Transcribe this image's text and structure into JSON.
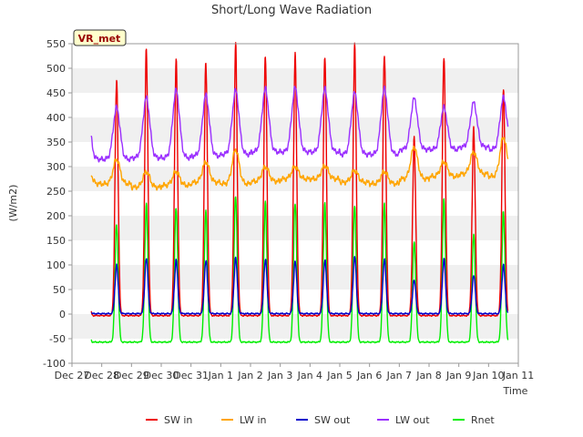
{
  "chart_data": {
    "type": "line",
    "title": "Short/Long Wave Radiation",
    "xlabel": "Time",
    "ylabel": "(W/m2)",
    "station_label": "VR_met",
    "x_range": [
      "Dec 27",
      "Jan 11"
    ],
    "x_ticks": [
      "Dec 27",
      "Dec 28",
      "Dec 29",
      "Dec 30",
      "Dec 31",
      "Jan 1",
      "Jan 2",
      "Jan 3",
      "Jan 4",
      "Jan 5",
      "Jan 6",
      "Jan 7",
      "Jan 8",
      "Jan 9",
      "Jan 10",
      "Jan 11"
    ],
    "ylim": [
      -100,
      550
    ],
    "y_ticks": [
      -100,
      -50,
      0,
      50,
      100,
      150,
      200,
      250,
      300,
      350,
      400,
      450,
      500,
      550
    ],
    "grid": "horizontal bands",
    "legend_position": "bottom",
    "days": [
      "Dec 28",
      "Dec 29",
      "Dec 30",
      "Dec 31",
      "Jan 1",
      "Jan 2",
      "Jan 3",
      "Jan 4",
      "Jan 5",
      "Jan 6",
      "Jan 7",
      "Jan 8",
      "Jan 9",
      "Jan 10"
    ],
    "series": [
      {
        "name": "SW in",
        "color": "#ee0000",
        "night": -3,
        "daily_peak": [
          470,
          530,
          510,
          505,
          540,
          520,
          518,
          520,
          535,
          525,
          350,
          520,
          370,
          455
        ]
      },
      {
        "name": "LW in",
        "color": "#ffa500",
        "daily_min": [
          265,
          258,
          262,
          268,
          265,
          270,
          275,
          275,
          268,
          265,
          275,
          280,
          285,
          280
        ],
        "daily_max": [
          315,
          290,
          290,
          310,
          335,
          300,
          300,
          302,
          292,
          290,
          340,
          310,
          330,
          360
        ]
      },
      {
        "name": "SW out",
        "color": "#0000cc",
        "night": 1,
        "daily_peak": [
          100,
          115,
          110,
          110,
          115,
          112,
          108,
          110,
          118,
          112,
          70,
          112,
          80,
          100
        ]
      },
      {
        "name": "LW out",
        "color": "#9b30ff",
        "daily_min": [
          315,
          318,
          318,
          322,
          325,
          330,
          330,
          330,
          325,
          325,
          335,
          335,
          340,
          335
        ],
        "daily_max": [
          420,
          440,
          455,
          445,
          455,
          458,
          460,
          458,
          450,
          458,
          438,
          420,
          430,
          440
        ]
      },
      {
        "name": "Rnet",
        "color": "#00ee00",
        "night": -57,
        "daily_peak": [
          185,
          225,
          220,
          210,
          245,
          228,
          230,
          225,
          225,
          225,
          150,
          235,
          165,
          210
        ]
      }
    ]
  }
}
